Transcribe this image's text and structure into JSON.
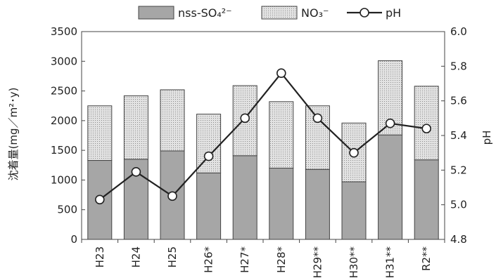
{
  "chart_data": {
    "type": "bar",
    "stacked": true,
    "categories": [
      "H23",
      "H24",
      "H25",
      "H26*",
      "H27*",
      "H28*",
      "H29**",
      "H30**",
      "H31**",
      "R2**"
    ],
    "series": [
      {
        "name": "nss-SO₄²⁻",
        "kind": "bar",
        "axis": "left",
        "color": "#a6a6a6",
        "values": [
          1330,
          1350,
          1490,
          1120,
          1410,
          1200,
          1180,
          970,
          1760,
          1340
        ]
      },
      {
        "name": "NO₃⁻",
        "kind": "bar",
        "axis": "left",
        "color": "#d4d4d4",
        "values": [
          920,
          1070,
          1030,
          990,
          1180,
          1120,
          1070,
          990,
          1250,
          1240
        ]
      },
      {
        "name": "pH",
        "kind": "line",
        "axis": "right",
        "color": "#222222",
        "values": [
          5.03,
          5.19,
          5.05,
          5.28,
          5.5,
          5.76,
          5.5,
          5.3,
          5.47,
          5.44
        ]
      }
    ],
    "ylabel": "沈着量(mg／m²･y)",
    "y2label": "pH",
    "ylim": [
      0,
      3500
    ],
    "yticks": [
      0,
      500,
      1000,
      1500,
      2000,
      2500,
      3000,
      3500
    ],
    "y2lim": [
      4.8,
      6.0
    ],
    "y2ticks": [
      "4.8",
      "5.0",
      "5.2",
      "5.4",
      "5.6",
      "5.8",
      "6.0"
    ],
    "legend_position": "top",
    "grid": false
  }
}
